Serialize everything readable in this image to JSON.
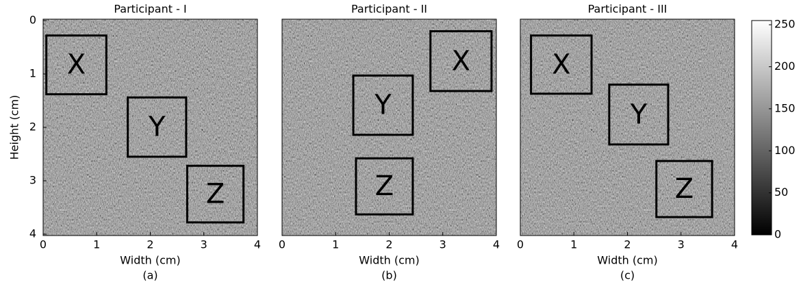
{
  "figure": {
    "colorbar": {
      "lim": [
        0,
        255
      ],
      "ticks": [
        0,
        50,
        100,
        150,
        200,
        250
      ]
    },
    "yreverse": true,
    "panels": [
      {
        "title": "Participant - I",
        "xlabel": "Width (cm)",
        "caption": "(a)",
        "ylabel": "Height (cm)",
        "xlim": [
          0,
          4
        ],
        "ylim": [
          0,
          4
        ],
        "xticks": [
          0,
          1,
          2,
          3,
          4
        ],
        "yticks": [
          0,
          1,
          2,
          3,
          4
        ],
        "boxes": [
          {
            "label": "X",
            "x": [
              0.06,
              1.18
            ],
            "y": [
              0.28,
              1.38
            ]
          },
          {
            "label": "Y",
            "x": [
              1.58,
              2.67
            ],
            "y": [
              1.44,
              2.55
            ]
          },
          {
            "label": "Z",
            "x": [
              2.69,
              3.74
            ],
            "y": [
              2.72,
              3.78
            ]
          }
        ]
      },
      {
        "title": "Participant - II",
        "xlabel": "Width (cm)",
        "caption": "(b)",
        "xlim": [
          0,
          4
        ],
        "ylim": [
          0,
          4
        ],
        "xticks": [
          0,
          1,
          2,
          3,
          4
        ],
        "boxes": [
          {
            "label": "X",
            "x": [
              2.77,
              3.91
            ],
            "y": [
              0.2,
              1.32
            ]
          },
          {
            "label": "Y",
            "x": [
              1.33,
              2.44
            ],
            "y": [
              1.03,
              2.14
            ]
          },
          {
            "label": "Z",
            "x": [
              1.38,
              2.44
            ],
            "y": [
              2.58,
              3.63
            ]
          }
        ]
      },
      {
        "title": "Participant - III",
        "xlabel": "Width (cm)",
        "caption": "(c)",
        "xlim": [
          0,
          4
        ],
        "ylim": [
          0,
          4
        ],
        "xticks": [
          0,
          1,
          2,
          3,
          4
        ],
        "boxes": [
          {
            "label": "X",
            "x": [
              0.2,
              1.33
            ],
            "y": [
              0.28,
              1.37
            ]
          },
          {
            "label": "Y",
            "x": [
              1.66,
              2.76
            ],
            "y": [
              1.2,
              2.32
            ]
          },
          {
            "label": "Z",
            "x": [
              2.54,
              3.58
            ],
            "y": [
              2.63,
              3.68
            ]
          }
        ]
      }
    ]
  }
}
